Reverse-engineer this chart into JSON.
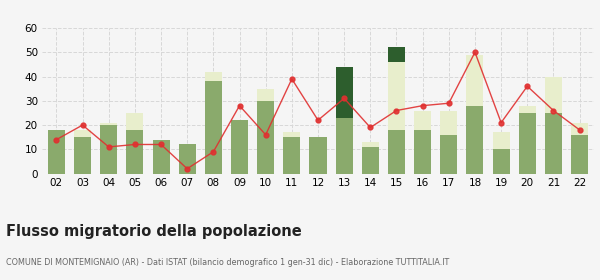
{
  "years": [
    "02",
    "03",
    "04",
    "05",
    "06",
    "07",
    "08",
    "09",
    "10",
    "11",
    "12",
    "13",
    "14",
    "15",
    "16",
    "17",
    "18",
    "19",
    "20",
    "21",
    "22"
  ],
  "iscritti_altri_comuni": [
    18,
    15,
    20,
    18,
    14,
    12,
    38,
    22,
    30,
    15,
    15,
    23,
    11,
    18,
    18,
    16,
    28,
    10,
    25,
    25,
    16
  ],
  "iscritti_estero": [
    0,
    3,
    1,
    7,
    0,
    0,
    4,
    0,
    5,
    2,
    0,
    0,
    2,
    28,
    8,
    10,
    21,
    7,
    3,
    15,
    5
  ],
  "iscritti_altri": [
    0,
    0,
    0,
    0,
    0,
    0,
    0,
    0,
    0,
    0,
    0,
    21,
    0,
    6,
    0,
    0,
    0,
    0,
    0,
    0,
    0
  ],
  "cancellati": [
    14,
    20,
    11,
    12,
    12,
    2,
    9,
    28,
    16,
    39,
    22,
    31,
    19,
    26,
    28,
    29,
    50,
    21,
    36,
    26,
    18
  ],
  "color_altri_comuni": "#8aaa6c",
  "color_estero": "#e8eecc",
  "color_altri": "#2d5e2d",
  "color_cancellati": "#e03030",
  "title": "Flusso migratorio della popolazione",
  "subtitle": "COMUNE DI MONTEMIGNAIO (AR) - Dati ISTAT (bilancio demografico 1 gen-31 dic) - Elaborazione TUTTITALIA.IT",
  "ylim": [
    0,
    60
  ],
  "yticks": [
    0,
    10,
    20,
    30,
    40,
    50,
    60
  ],
  "background_color": "#f5f5f5",
  "grid_color": "#d8d8d8"
}
